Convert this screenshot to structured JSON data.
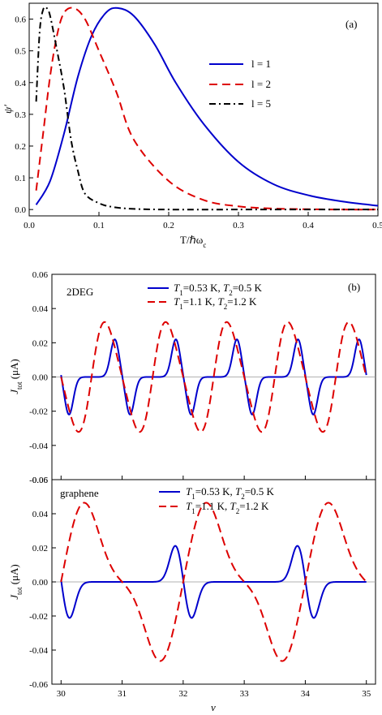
{
  "chart_data": [
    {
      "type": "line",
      "panel_label": "(a)",
      "xlabel": "T/ℏω",
      "xlabel_sub": "c",
      "ylabel": "ψ′",
      "xlim": [
        0,
        0.5
      ],
      "ylim": [
        -0.02,
        0.65
      ],
      "x_ticks": [
        "0.0",
        "0.1",
        "0.2",
        "0.3",
        "0.4",
        "0.5"
      ],
      "y_ticks": [
        "0.0",
        "0.1",
        "0.2",
        "0.3",
        "0.4",
        "0.5",
        "0.6"
      ],
      "legend_position": "top-right",
      "series": [
        {
          "name": "l = 1",
          "color": "#0000cc",
          "dash": "solid",
          "x": [
            0.01,
            0.03,
            0.05,
            0.07,
            0.09,
            0.11,
            0.127,
            0.15,
            0.18,
            0.21,
            0.25,
            0.3,
            0.35,
            0.4,
            0.45,
            0.5
          ],
          "y": [
            0.015,
            0.09,
            0.24,
            0.42,
            0.55,
            0.62,
            0.635,
            0.61,
            0.52,
            0.4,
            0.27,
            0.15,
            0.08,
            0.045,
            0.025,
            0.012
          ]
        },
        {
          "name": "l = 2",
          "color": "#dd0000",
          "dash": "dashed",
          "x": [
            0.01,
            0.02,
            0.03,
            0.04,
            0.05,
            0.064,
            0.08,
            0.1,
            0.125,
            0.15,
            0.2,
            0.25,
            0.3,
            0.35,
            0.4,
            0.45,
            0.5
          ],
          "y": [
            0.06,
            0.24,
            0.42,
            0.55,
            0.62,
            0.635,
            0.6,
            0.5,
            0.37,
            0.22,
            0.09,
            0.03,
            0.01,
            0.003,
            0.001,
            0.0,
            0.0
          ]
        },
        {
          "name": "l = 5",
          "color": "#000000",
          "dash": "dashdot",
          "x": [
            0.01,
            0.015,
            0.02,
            0.025,
            0.03,
            0.04,
            0.05,
            0.06,
            0.07,
            0.08,
            0.1,
            0.12,
            0.15,
            0.2,
            0.3,
            0.5
          ],
          "y": [
            0.34,
            0.56,
            0.63,
            0.635,
            0.61,
            0.5,
            0.38,
            0.22,
            0.12,
            0.05,
            0.02,
            0.008,
            0.002,
            0.0,
            0.0,
            0.0
          ]
        }
      ]
    },
    {
      "type": "line",
      "panel_label": "(b)",
      "panel_tag": "2DEG",
      "ylabel": "J",
      "ylabel_sub": "tot",
      "ylabel_unit": "(μA)",
      "xlim": [
        29.85,
        35.15
      ],
      "ylim": [
        -0.06,
        0.06
      ],
      "y_ticks": [
        "0.06",
        "0.04",
        "0.02",
        "0.00",
        "-0.02",
        "-0.04",
        "-0.06"
      ],
      "legend_position": "top-right",
      "legend": [
        {
          "T1": "T",
          "T1_sub": "1",
          "T1_val": "=0.53 K, ",
          "T2": "T",
          "T2_sub": "2",
          "T2_val": "=0.5 K",
          "color": "#0000cc",
          "dash": "solid"
        },
        {
          "T1": "T",
          "T1_sub": "1",
          "T1_val": "=1.1 K, ",
          "T2": "T",
          "T2_sub": "2",
          "T2_val": "=1.2 K",
          "color": "#dd0000",
          "dash": "dashed"
        }
      ],
      "period": 1,
      "series": [
        {
          "name": "T1=0.53 K, T2=0.5 K",
          "color": "#0000cc",
          "dash": "solid",
          "peak": 0.022,
          "trough": -0.022,
          "peak_offset": 0.88,
          "trough_offset": 0.13
        },
        {
          "name": "T1=1.1 K, T2=1.2 K",
          "color": "#dd0000",
          "dash": "dashed",
          "peak": 0.047,
          "trough": -0.047,
          "peak_offset": 0.63,
          "trough_offset": 0.37
        }
      ]
    },
    {
      "type": "line",
      "panel_tag": "graphene",
      "xlabel": "ν",
      "ylabel": "J",
      "ylabel_sub": "tot",
      "ylabel_unit": "(μA)",
      "xlim": [
        29.85,
        35.15
      ],
      "ylim": [
        -0.06,
        0.06
      ],
      "x_ticks": [
        "30",
        "31",
        "32",
        "33",
        "34",
        "35"
      ],
      "y_ticks": [
        "0.06",
        "0.04",
        "0.02",
        "0.00",
        "-0.02",
        "-0.04",
        "-0.06"
      ],
      "legend_position": "top-right",
      "legend": [
        {
          "T1": "T",
          "T1_sub": "1",
          "T1_val": "=0.53 K, ",
          "T2": "T",
          "T2_sub": "2",
          "T2_val": "=0.5 K",
          "color": "#0000cc",
          "dash": "solid"
        },
        {
          "T1": "T",
          "T1_sub": "1",
          "T1_val": "=1.1 K, ",
          "T2": "T",
          "T2_sub": "2",
          "T2_val": "=1.2 K",
          "color": "#dd0000",
          "dash": "dashed"
        }
      ],
      "period": 2,
      "series": [
        {
          "name": "T1=0.53 K, T2=0.5 K",
          "color": "#0000cc",
          "dash": "solid",
          "peak": 0.022,
          "trough": -0.022,
          "peak_offset": 1.88,
          "trough_offset": 0.13
        },
        {
          "name": "T1=1.1 K, T2=1.2 K",
          "color": "#dd0000",
          "dash": "dashed",
          "peak": 0.047,
          "trough": -0.047,
          "peak_offset": 0.37,
          "trough_offset": 1.63
        }
      ]
    }
  ]
}
